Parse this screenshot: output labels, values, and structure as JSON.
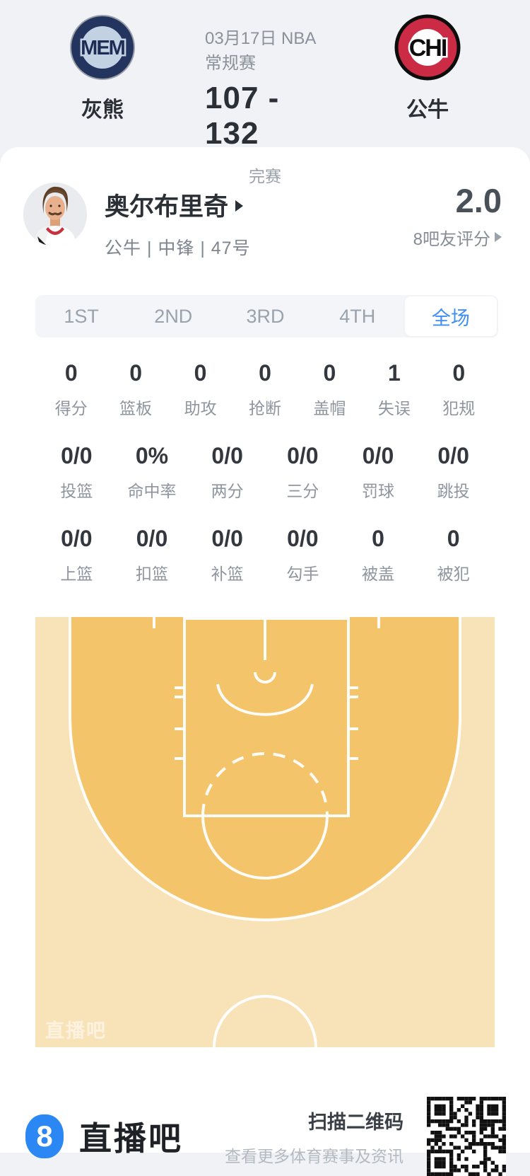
{
  "colors": {
    "accent": "#3e8ef7",
    "court_inner": "#f4c46b",
    "court_outer": "#f8e3b8",
    "brand_blue": "#2b87f3"
  },
  "header": {
    "match_title": "03月17日 NBA常规赛",
    "score": "107 - 132",
    "status": "完赛",
    "home": {
      "abbr": "MEM",
      "name": "灰熊"
    },
    "away": {
      "abbr": "CHI",
      "name": "公牛"
    }
  },
  "player": {
    "name": "奥尔布里奇",
    "meta": "公牛 | 中锋 | 47号",
    "rating": "2.0",
    "rating_label": "8吧友评分"
  },
  "tabs": [
    {
      "label": "1ST"
    },
    {
      "label": "2ND"
    },
    {
      "label": "3RD"
    },
    {
      "label": "4TH"
    },
    {
      "label": "全场"
    }
  ],
  "stats": {
    "row1": [
      {
        "value": "0",
        "label": "得分"
      },
      {
        "value": "0",
        "label": "篮板"
      },
      {
        "value": "0",
        "label": "助攻"
      },
      {
        "value": "0",
        "label": "抢断"
      },
      {
        "value": "0",
        "label": "盖帽"
      },
      {
        "value": "1",
        "label": "失误"
      },
      {
        "value": "0",
        "label": "犯规"
      }
    ],
    "row2": [
      {
        "value": "0/0",
        "label": "投篮"
      },
      {
        "value": "0%",
        "label": "命中率"
      },
      {
        "value": "0/0",
        "label": "两分"
      },
      {
        "value": "0/0",
        "label": "三分"
      },
      {
        "value": "0/0",
        "label": "罚球"
      },
      {
        "value": "0/0",
        "label": "跳投"
      }
    ],
    "row3": [
      {
        "value": "0/0",
        "label": "上篮"
      },
      {
        "value": "0/0",
        "label": "扣篮"
      },
      {
        "value": "0/0",
        "label": "补篮"
      },
      {
        "value": "0/0",
        "label": "勾手"
      },
      {
        "value": "0",
        "label": "被盖"
      },
      {
        "value": "0",
        "label": "被犯"
      }
    ]
  },
  "watermark": "直播吧",
  "footer": {
    "logo_char": "8",
    "brand": "直播吧",
    "qr_title": "扫描二维码",
    "qr_subtitle": "查看更多体育赛事及资讯"
  }
}
